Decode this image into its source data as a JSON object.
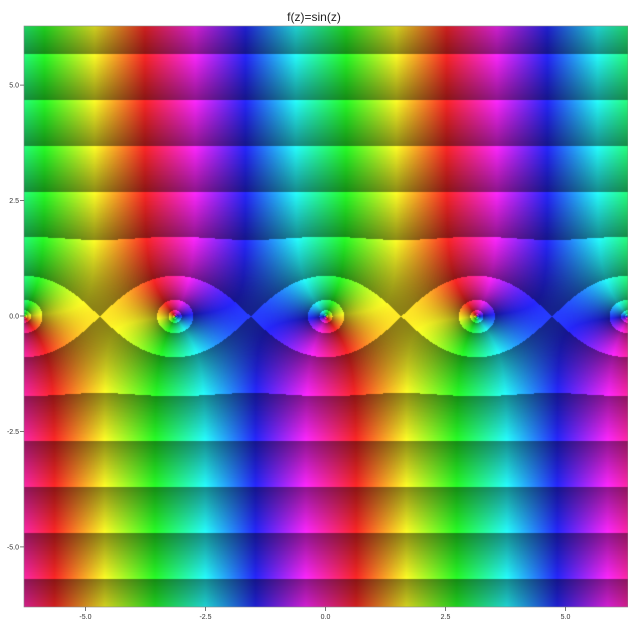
{
  "chart_data": {
    "type": "heatmap",
    "title": "f(z)=sin(z)",
    "function": "sin(z)",
    "coloring": "domain coloring: hue = arg f(z), brightness bands = log|f(z)|",
    "xlim": [
      -6.28,
      6.28
    ],
    "ylim": [
      -6.28,
      6.28
    ],
    "x_ticks": [
      -5.0,
      -2.5,
      0.0,
      2.5,
      5.0
    ],
    "x_tick_labels": [
      "-5.0",
      "-2.5",
      "0.0",
      "2.5",
      "5.0"
    ],
    "y_ticks": [
      5.0,
      2.5,
      0.0,
      -2.5,
      -5.0
    ],
    "y_tick_labels": [
      "5.0",
      "2.5",
      "0.0",
      "-2.5",
      "-5.0"
    ],
    "zeros_x": [
      -6.283,
      -3.142,
      0.0,
      3.142,
      6.283
    ],
    "xlabel": "",
    "ylabel": "",
    "grid": false
  }
}
